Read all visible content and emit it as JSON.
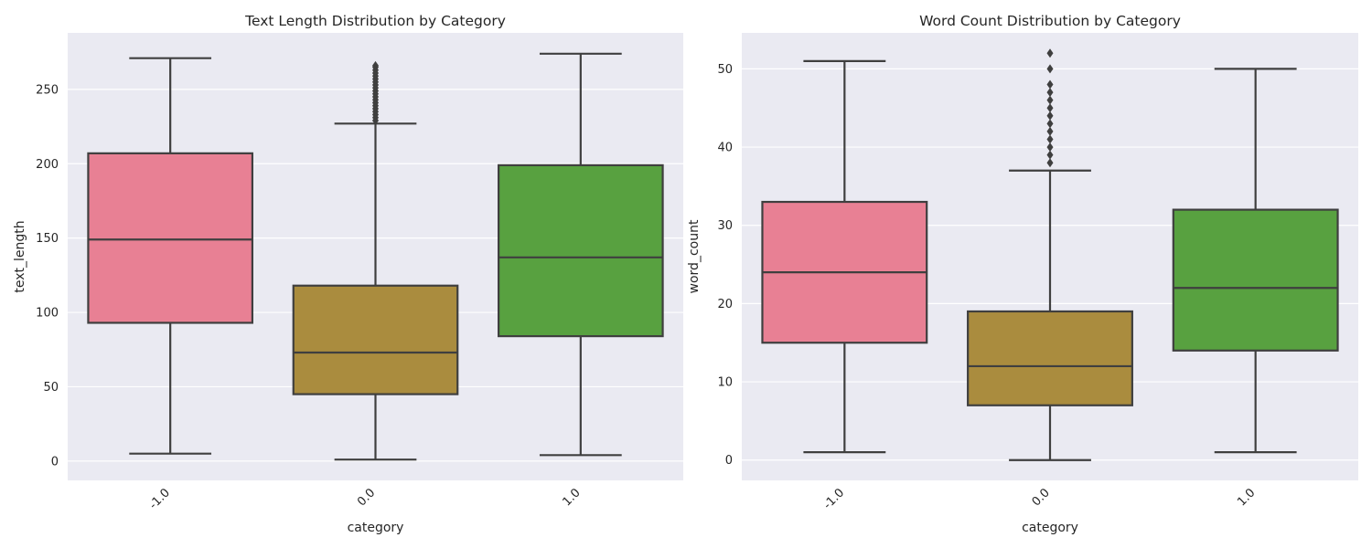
{
  "chart_data": [
    {
      "type": "box",
      "title": "Text Length Distribution by Category",
      "xlabel": "category",
      "ylabel": "text_length",
      "categories": [
        "-1.0",
        "0.0",
        "1.0"
      ],
      "colors": [
        "#e88094",
        "#aa8c3e",
        "#58a140"
      ],
      "ylim": [
        -13,
        288
      ],
      "yticks": [
        0,
        50,
        100,
        150,
        200,
        250
      ],
      "grid": true,
      "boxes": [
        {
          "category": "-1.0",
          "whisker_low": 5,
          "q1": 93,
          "median": 149,
          "q3": 207,
          "whisker_high": 271,
          "outliers": []
        },
        {
          "category": "0.0",
          "whisker_low": 1,
          "q1": 45,
          "median": 73,
          "q3": 118,
          "whisker_high": 227,
          "outliers": [
            229,
            231,
            233,
            235,
            237,
            239,
            241,
            243,
            245,
            247,
            249,
            251,
            253,
            255,
            257,
            259,
            261,
            263,
            265,
            266
          ]
        },
        {
          "category": "1.0",
          "whisker_low": 4,
          "q1": 84,
          "median": 137,
          "q3": 199,
          "whisker_high": 274,
          "outliers": []
        }
      ]
    },
    {
      "type": "box",
      "title": "Word Count Distribution by Category",
      "xlabel": "category",
      "ylabel": "word_count",
      "categories": [
        "-1.0",
        "0.0",
        "1.0"
      ],
      "colors": [
        "#e88094",
        "#aa8c3e",
        "#58a140"
      ],
      "ylim": [
        -2.6,
        54.6
      ],
      "yticks": [
        0,
        10,
        20,
        30,
        40,
        50
      ],
      "grid": true,
      "boxes": [
        {
          "category": "-1.0",
          "whisker_low": 1,
          "q1": 15,
          "median": 24,
          "q3": 33,
          "whisker_high": 51,
          "outliers": []
        },
        {
          "category": "0.0",
          "whisker_low": 0,
          "q1": 7,
          "median": 12,
          "q3": 19,
          "whisker_high": 37,
          "outliers": [
            38,
            39,
            40,
            41,
            42,
            43,
            44,
            45,
            46,
            47,
            48,
            50,
            52
          ]
        },
        {
          "category": "1.0",
          "whisker_low": 1,
          "q1": 14,
          "median": 22,
          "q3": 32,
          "whisker_high": 50,
          "outliers": []
        }
      ]
    }
  ]
}
